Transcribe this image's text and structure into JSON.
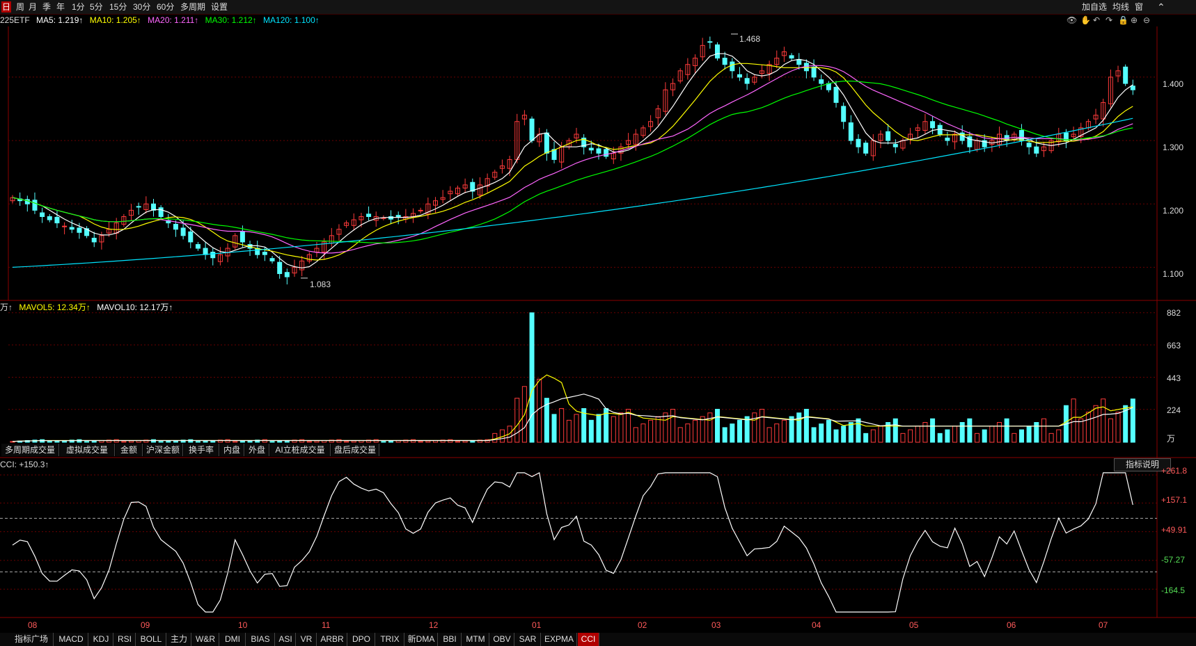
{
  "toolbar": {
    "periods": [
      "日",
      "周",
      "月",
      "季",
      "年",
      "1分",
      "5分",
      "15分",
      "30分",
      "60分",
      "多周期",
      "设置"
    ],
    "active_period": "日",
    "right_items": [
      "加自选",
      "均线",
      "窗"
    ]
  },
  "main_indicator": {
    "symbol": "225ETF",
    "ma5": "MA5: 1.219↑",
    "ma10": "MA10: 1.205↑",
    "ma20": "MA20: 1.211↑",
    "ma30": "MA30: 1.212↑",
    "ma120": "MA120: 1.100↑",
    "colors": {
      "ma5": "#ffffff",
      "ma10": "#ffff00",
      "ma20": "#ff66ff",
      "ma30": "#00ff00",
      "ma120": "#00e5ff",
      "up": "#ff3b3b",
      "down": "#55ffff"
    },
    "high_label": "1.468",
    "low_label": "1.083",
    "y_ticks": [
      "1.400",
      "1.300",
      "1.200",
      "1.100"
    ]
  },
  "volume": {
    "legend_prefix": "万↑",
    "mavol5": "MAVOL5: 12.34万↑",
    "mavol10": "MAVOL10: 12.17万↑",
    "y_ticks": [
      "882",
      "663",
      "443",
      "224"
    ],
    "unit": "万"
  },
  "volume_tabs": [
    "多周期成交量",
    "虚拟成交量",
    "金额",
    "沪深金额",
    "换手率",
    "内盘",
    "外盘",
    "AI立桩成交量",
    "盘后成交量"
  ],
  "cci": {
    "label": "CCI: +150.3↑",
    "y_ticks": [
      "+261.8",
      "+157.1",
      "+49.91",
      "-57.27",
      "-164.5"
    ],
    "explain_button": "指标说明"
  },
  "x_months": [
    "08",
    "09",
    "10",
    "11",
    "12",
    "01",
    "02",
    "03",
    "04",
    "05",
    "06",
    "07"
  ],
  "indicator_tabs": [
    "指标广场",
    "MACD",
    "KDJ",
    "RSI",
    "BOLL",
    "主力",
    "W&R",
    "DMI",
    "BIAS",
    "ASI",
    "VR",
    "ARBR",
    "DPO",
    "TRIX",
    "新DMA",
    "BBI",
    "MTM",
    "OBV",
    "SAR",
    "EXPMA",
    "CCI"
  ],
  "active_indicator": "CCI",
  "chart_data": [
    {
      "type": "candlestick",
      "title": "225ETF",
      "ylim": [
        1.05,
        1.48
      ],
      "y_ticks": [
        1.1,
        1.2,
        1.3,
        1.4
      ],
      "high": 1.468,
      "low": 1.083,
      "close_path": [
        1.21,
        1.205,
        1.2,
        1.19,
        1.18,
        1.175,
        1.17,
        1.165,
        1.16,
        1.155,
        1.15,
        1.14,
        1.15,
        1.16,
        1.17,
        1.18,
        1.19,
        1.195,
        1.2,
        1.19,
        1.18,
        1.17,
        1.16,
        1.15,
        1.14,
        1.13,
        1.12,
        1.115,
        1.12,
        1.13,
        1.15,
        1.14,
        1.13,
        1.12,
        1.12,
        1.11,
        1.09,
        1.085,
        1.1,
        1.11,
        1.12,
        1.13,
        1.14,
        1.15,
        1.16,
        1.17,
        1.175,
        1.18,
        1.18,
        1.18,
        1.178,
        1.176,
        1.18,
        1.18,
        1.185,
        1.19,
        1.2,
        1.205,
        1.21,
        1.22,
        1.225,
        1.23,
        1.22,
        1.23,
        1.24,
        1.25,
        1.26,
        1.27,
        1.33,
        1.34,
        1.3,
        1.31,
        1.28,
        1.27,
        1.29,
        1.3,
        1.31,
        1.29,
        1.285,
        1.28,
        1.275,
        1.28,
        1.29,
        1.3,
        1.31,
        1.32,
        1.33,
        1.35,
        1.38,
        1.39,
        1.41,
        1.42,
        1.43,
        1.45,
        1.455,
        1.43,
        1.42,
        1.41,
        1.4,
        1.39,
        1.4,
        1.41,
        1.42,
        1.43,
        1.44,
        1.43,
        1.42,
        1.41,
        1.4,
        1.39,
        1.38,
        1.36,
        1.33,
        1.3,
        1.29,
        1.28,
        1.3,
        1.31,
        1.3,
        1.29,
        1.3,
        1.31,
        1.32,
        1.33,
        1.32,
        1.31,
        1.3,
        1.31,
        1.3,
        1.29,
        1.3,
        1.29,
        1.3,
        1.31,
        1.3,
        1.31,
        1.3,
        1.29,
        1.28,
        1.29,
        1.3,
        1.31,
        1.3,
        1.31,
        1.32,
        1.33,
        1.34,
        1.36,
        1.4,
        1.41,
        1.39,
        1.38
      ]
    },
    {
      "type": "bar",
      "title": "Volume",
      "ylim": [
        0,
        900
      ],
      "y_ticks": [
        224,
        443,
        663,
        882
      ],
      "peak": 882
    },
    {
      "type": "line",
      "title": "CCI",
      "ylim": [
        -260,
        280
      ],
      "y_ticks": [
        261.8,
        157.1,
        49.91,
        -57.27,
        -164.5
      ],
      "last": 150.3
    }
  ]
}
